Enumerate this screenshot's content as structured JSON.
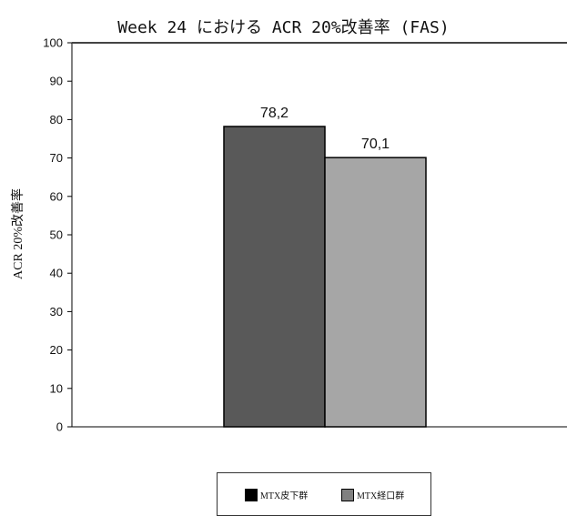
{
  "chart_data": {
    "type": "bar",
    "title": "Week 24 における ACR 20%改善率 (FAS)",
    "ylabel": "ACR 20%改善率",
    "xlabel": "",
    "ylim": [
      0,
      100
    ],
    "yticks": [
      "0",
      "10",
      "20",
      "30",
      "40",
      "50",
      "60",
      "70",
      "80",
      "90",
      "100"
    ],
    "grid": false,
    "legend_position": "bottom",
    "series": [
      {
        "name": "MTX皮下群",
        "value": 78.2,
        "label": "78,2",
        "color": "#595959"
      },
      {
        "name": "MTX経口群",
        "value": 70.1,
        "label": "70,1",
        "color": "#a6a6a6"
      }
    ]
  }
}
